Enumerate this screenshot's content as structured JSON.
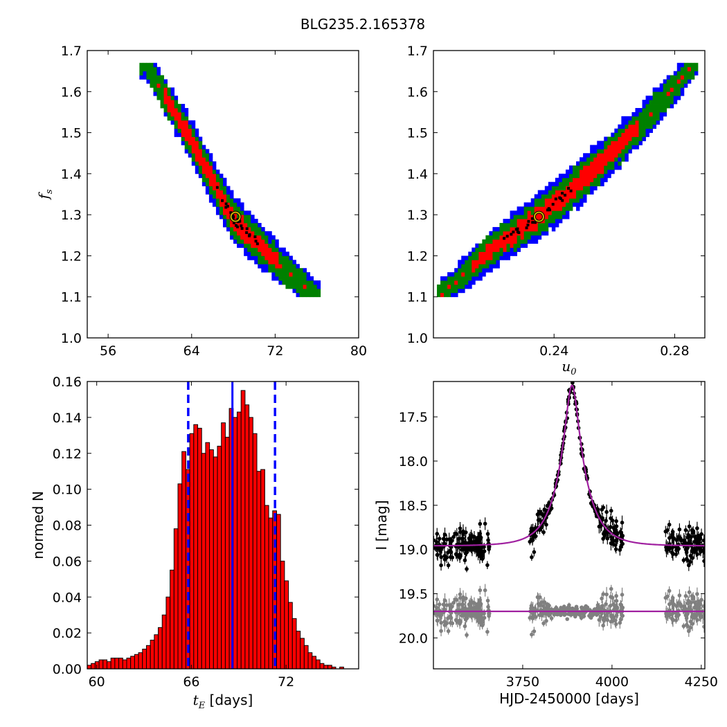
{
  "figure_title": "BLG235.2.165378",
  "colors": {
    "blue_region": "#0000ff",
    "green_region": "#008000",
    "red_region": "#ff0000",
    "histogram_fill": "#ff0000",
    "marker_ring": "#c8b400",
    "model_curve": "#a020a0",
    "data_black": "#000000",
    "data_gray": "#808080",
    "vline": "#0000ff"
  },
  "chart_data": [
    {
      "type": "heatmap",
      "panel": "top-left",
      "xlabel": "",
      "ylabel": "f_s",
      "xlim": [
        54,
        80
      ],
      "ylim": [
        1.0,
        1.7
      ],
      "xticks": [
        "56",
        "64",
        "72",
        "80"
      ],
      "yticks": [
        "1.0",
        "1.1",
        "1.2",
        "1.3",
        "1.4",
        "1.5",
        "1.6",
        "1.7"
      ],
      "x_tick_values": [
        56,
        64,
        72,
        80
      ],
      "y_tick_values": [
        1.0,
        1.1,
        1.2,
        1.3,
        1.4,
        1.5,
        1.6,
        1.7
      ],
      "ridge": [
        [
          59.5,
          1.67
        ],
        [
          64,
          1.48
        ],
        [
          68,
          1.29
        ],
        [
          72,
          1.19
        ],
        [
          76,
          1.1
        ]
      ],
      "best_fit_marker": {
        "x": 68.2,
        "y": 1.295
      }
    },
    {
      "type": "heatmap",
      "panel": "top-right",
      "xlabel": "u_0",
      "ylabel": "",
      "xlim": [
        0.2,
        0.29
      ],
      "ylim": [
        1.0,
        1.7
      ],
      "xticks": [
        "0.24",
        "0.28"
      ],
      "yticks": [
        "1.0",
        "1.1",
        "1.2",
        "1.3",
        "1.4",
        "1.5",
        "1.6",
        "1.7"
      ],
      "x_tick_values": [
        0.24,
        0.28
      ],
      "y_tick_values": [
        1.0,
        1.1,
        1.2,
        1.3,
        1.4,
        1.5,
        1.6,
        1.7
      ],
      "ridge": [
        [
          0.202,
          1.1
        ],
        [
          0.22,
          1.22
        ],
        [
          0.235,
          1.295
        ],
        [
          0.255,
          1.42
        ],
        [
          0.27,
          1.53
        ],
        [
          0.287,
          1.67
        ]
      ],
      "best_fit_marker": {
        "x": 0.235,
        "y": 1.295
      }
    },
    {
      "type": "bar",
      "panel": "bottom-left",
      "xlabel": "t_E [days]",
      "ylabel": "normed N",
      "xlim": [
        59.4,
        76.6
      ],
      "ylim": [
        0,
        0.16
      ],
      "xticks": [
        "60",
        "66",
        "72"
      ],
      "yticks": [
        "0.00",
        "0.02",
        "0.04",
        "0.06",
        "0.08",
        "0.10",
        "0.12",
        "0.14",
        "0.16"
      ],
      "x_tick_values": [
        60,
        66,
        72
      ],
      "y_tick_values": [
        0,
        0.02,
        0.04,
        0.06,
        0.08,
        0.1,
        0.12,
        0.14,
        0.16
      ],
      "bin_start": 59.4,
      "bin_width": 0.25,
      "values": [
        0.002,
        0.003,
        0.004,
        0.005,
        0.005,
        0.004,
        0.006,
        0.006,
        0.006,
        0.005,
        0.006,
        0.007,
        0.008,
        0.009,
        0.011,
        0.013,
        0.016,
        0.019,
        0.023,
        0.03,
        0.04,
        0.055,
        0.078,
        0.103,
        0.121,
        0.111,
        0.131,
        0.136,
        0.134,
        0.12,
        0.126,
        0.122,
        0.118,
        0.124,
        0.137,
        0.129,
        0.145,
        0.14,
        0.143,
        0.155,
        0.147,
        0.14,
        0.131,
        0.11,
        0.111,
        0.091,
        0.084,
        0.088,
        0.086,
        0.06,
        0.049,
        0.037,
        0.028,
        0.021,
        0.017,
        0.013,
        0.009,
        0.007,
        0.005,
        0.003,
        0.002,
        0.002,
        0.001,
        0.0,
        0.001
      ],
      "median_line": 68.6,
      "interval_lines": [
        65.8,
        71.3
      ]
    },
    {
      "type": "scatter",
      "panel": "bottom-right",
      "xlabel": "HJD-2450000 [days]",
      "ylabel": "I [mag]",
      "xlim": [
        3500,
        4260
      ],
      "ylim": [
        20.35,
        17.1
      ],
      "xticks": [
        "3750",
        "4000",
        "4250"
      ],
      "yticks": [
        "17.5",
        "18.0",
        "18.5",
        "19.0",
        "19.5",
        "20.0"
      ],
      "x_tick_values": [
        3750,
        4000,
        4250
      ],
      "y_tick_values": [
        17.5,
        18.0,
        18.5,
        19.0,
        19.5,
        20.0
      ],
      "model": {
        "t0": 3888,
        "tE": 68.6,
        "u0": 0.235,
        "fs": 1.295,
        "I_base": 18.96
      },
      "residual_baseline": 19.7,
      "season_ranges": [
        [
          3500,
          3660
        ],
        [
          3770,
          4030
        ],
        [
          4150,
          4260
        ]
      ],
      "series": [
        {
          "name": "",
          "color": "#000000",
          "kind": "data"
        },
        {
          "name": "",
          "color": "#808080",
          "kind": "residuals"
        }
      ]
    }
  ]
}
